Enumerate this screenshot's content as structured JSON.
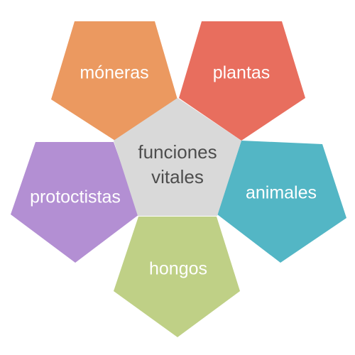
{
  "diagram": {
    "center": {
      "lines": [
        "funciones",
        "vitales"
      ],
      "color": "#d9d9d9",
      "text_color": "#4d4d4d"
    },
    "petals": [
      {
        "label": "móneras",
        "color": "#eb9960"
      },
      {
        "label": "plantas",
        "color": "#e86e5e"
      },
      {
        "label": "animales",
        "color": "#53b6c5"
      },
      {
        "label": "hongos",
        "color": "#bfd086"
      },
      {
        "label": "protoctistas",
        "color": "#b38fd3"
      }
    ]
  }
}
